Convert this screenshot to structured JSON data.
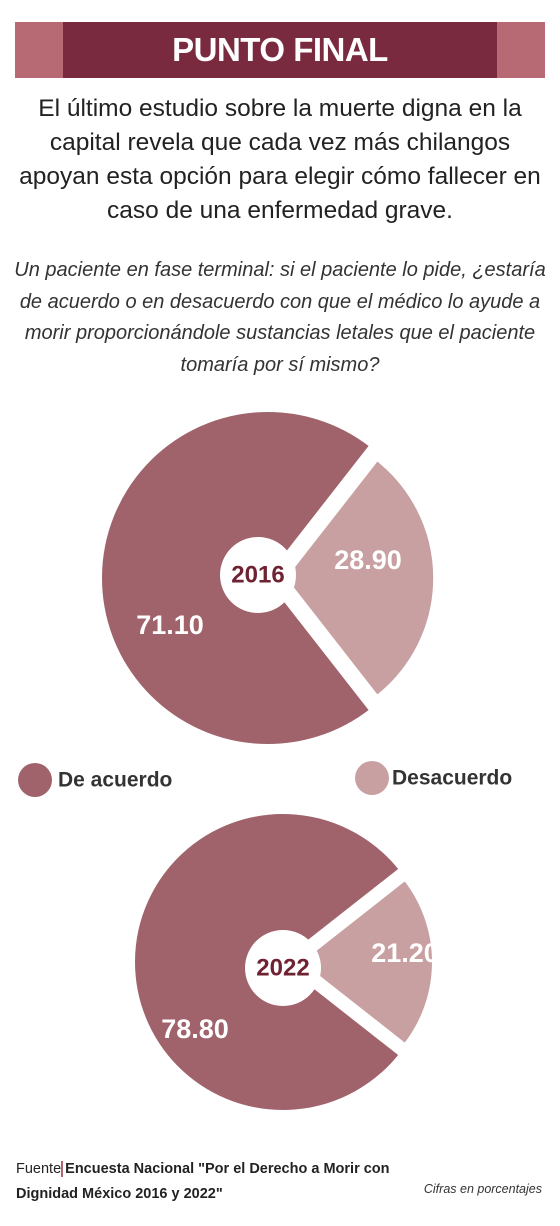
{
  "header": "PUNTO FINAL",
  "intro": "El último estudio sobre la muerte digna en la capital revela que cada vez más chilangos apoyan esta opción para elegir cómo fallecer en caso de una enfermedad grave.",
  "question": "Un paciente en fase terminal: si el paciente lo pide, ¿estaría de acuerdo o en desacuerdo con que el médico lo ayude a morir proporcionándole sustancias letales que el paciente tomaría por sí mismo?",
  "chart_data": [
    {
      "type": "pie",
      "title": "2016",
      "categories": [
        "De acuerdo",
        "Desacuerdo"
      ],
      "values": [
        71.1,
        28.9
      ],
      "value_labels": [
        "71.10",
        "28.90"
      ],
      "colors": [
        "#a0636b",
        "#c9a0a2"
      ]
    },
    {
      "type": "pie",
      "title": "2022",
      "values": [
        78.8,
        21.2
      ],
      "value_labels": [
        "78.80",
        "21.20"
      ],
      "colors": [
        "#a0636b",
        "#c9a0a2"
      ]
    }
  ],
  "source_label": "Fuente",
  "source": "Encuesta Nacional \"Por el Derecho a Morir con Dignidad México 2016 y 2022\"",
  "note": "Cifras en porcentajes"
}
